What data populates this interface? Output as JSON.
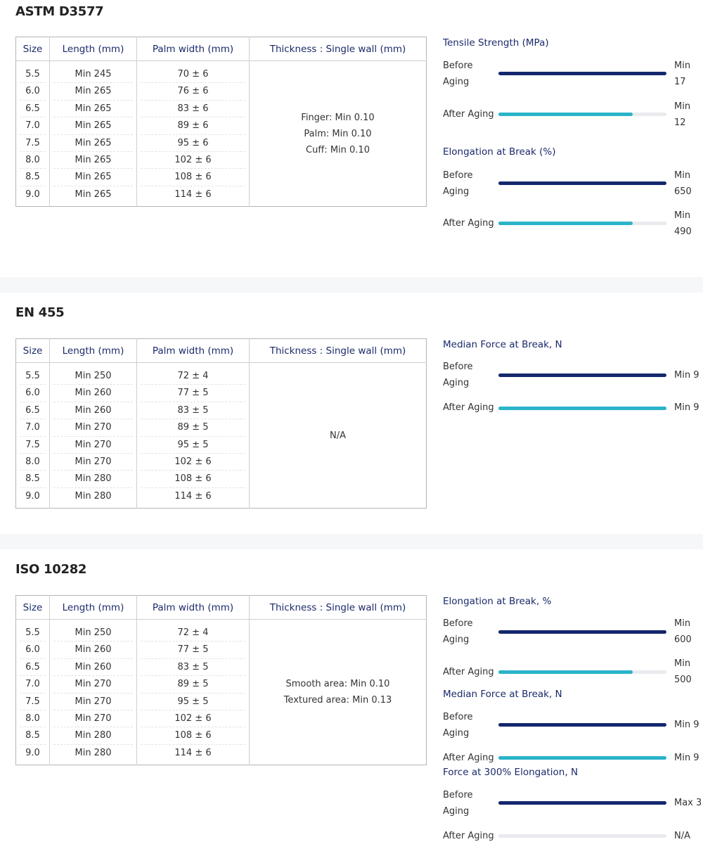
{
  "table_headers": {
    "size": "Size",
    "length": "Length (mm)",
    "palm": "Palm width (mm)",
    "thickness": "Thickness : Single wall (mm)"
  },
  "colors": {
    "before_bar": "#14286e",
    "after_bar": "#2ab3c9",
    "track": "#e8eaee",
    "heading": "#1b2a6b"
  },
  "sections": [
    {
      "title": "ASTM D3577",
      "rows": [
        {
          "size": "5.5",
          "length": "Min 245",
          "palm": "70 ± 6"
        },
        {
          "size": "6.0",
          "length": "Min 265",
          "palm": "76 ± 6"
        },
        {
          "size": "6.5",
          "length": "Min 265",
          "palm": "83 ± 6"
        },
        {
          "size": "7.0",
          "length": "Min 265",
          "palm": "89 ± 6"
        },
        {
          "size": "7.5",
          "length": "Min 265",
          "palm": "95 ± 6"
        },
        {
          "size": "8.0",
          "length": "Min 265",
          "palm": "102 ± 6"
        },
        {
          "size": "8.5",
          "length": "Min 265",
          "palm": "108 ± 6"
        },
        {
          "size": "9.0",
          "length": "Min 265",
          "palm": "114 ± 6"
        }
      ],
      "thickness": [
        "Finger: Min 0.10",
        "Palm: Min 0.10",
        "Cuff: Min 0.10"
      ],
      "properties": [
        {
          "title": "Tensile Strength (MPa)",
          "before": {
            "label": "Before Aging",
            "value": "Min 17",
            "fill_pct": 100
          },
          "after": {
            "label": "After Aging",
            "value": "Min 12",
            "fill_pct": 80
          }
        },
        {
          "title": "Elongation at Break (%)",
          "before": {
            "label": "Before Aging",
            "value": "Min 650",
            "fill_pct": 100
          },
          "after": {
            "label": "After Aging",
            "value": "Min 490",
            "fill_pct": 80
          }
        }
      ]
    },
    {
      "title": "EN 455",
      "rows": [
        {
          "size": "5.5",
          "length": "Min 250",
          "palm": "72 ± 4"
        },
        {
          "size": "6.0",
          "length": "Min 260",
          "palm": "77 ± 5"
        },
        {
          "size": "6.5",
          "length": "Min 260",
          "palm": "83 ± 5"
        },
        {
          "size": "7.0",
          "length": "Min 270",
          "palm": "89 ± 5"
        },
        {
          "size": "7.5",
          "length": "Min 270",
          "palm": "95 ± 5"
        },
        {
          "size": "8.0",
          "length": "Min 270",
          "palm": "102 ± 6"
        },
        {
          "size": "8.5",
          "length": "Min 280",
          "palm": "108 ± 6"
        },
        {
          "size": "9.0",
          "length": "Min 280",
          "palm": "114 ± 6"
        }
      ],
      "thickness": [
        "N/A"
      ],
      "properties": [
        {
          "title": "Median Force at Break, N",
          "before": {
            "label": "Before Aging",
            "value": "Min 9",
            "fill_pct": 100
          },
          "after": {
            "label": "After Aging",
            "value": "Min 9",
            "fill_pct": 100
          }
        }
      ]
    },
    {
      "title": "ISO 10282",
      "rows": [
        {
          "size": "5.5",
          "length": "Min 250",
          "palm": "72 ± 4"
        },
        {
          "size": "6.0",
          "length": "Min 260",
          "palm": "77 ± 5"
        },
        {
          "size": "6.5",
          "length": "Min 260",
          "palm": "83 ± 5"
        },
        {
          "size": "7.0",
          "length": "Min 270",
          "palm": "89 ± 5"
        },
        {
          "size": "7.5",
          "length": "Min 270",
          "palm": "95 ± 5"
        },
        {
          "size": "8.0",
          "length": "Min 270",
          "palm": "102 ± 6"
        },
        {
          "size": "8.5",
          "length": "Min 280",
          "palm": "108 ± 6"
        },
        {
          "size": "9.0",
          "length": "Min 280",
          "palm": "114 ± 6"
        }
      ],
      "thickness": [
        "Smooth area: Min 0.10",
        "Textured area: Min 0.13"
      ],
      "properties": [
        {
          "title": "Elongation at Break, %",
          "before": {
            "label": "Before Aging",
            "value": "Min 600",
            "fill_pct": 100
          },
          "after": {
            "label": "After Aging",
            "value": "Min 500",
            "fill_pct": 80
          }
        },
        {
          "title": "Median Force at Break, N",
          "before": {
            "label": "Before Aging",
            "value": "Min 9",
            "fill_pct": 100
          },
          "after": {
            "label": "After Aging",
            "value": "Min 9",
            "fill_pct": 100
          }
        },
        {
          "title": "Force at 300% Elongation, N",
          "before": {
            "label": "Before Aging",
            "value": "Max 3",
            "fill_pct": 100
          },
          "after": {
            "label": "After Aging",
            "value": "N/A",
            "fill_pct": 0
          }
        }
      ]
    }
  ]
}
